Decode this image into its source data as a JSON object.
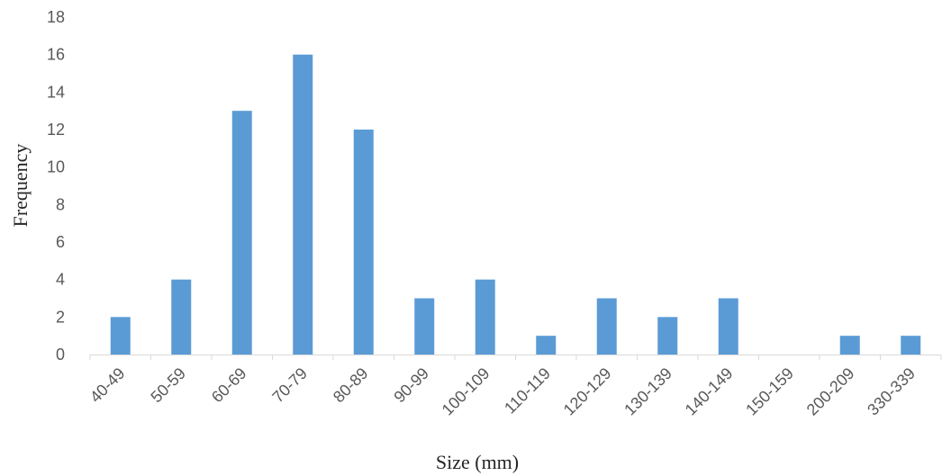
{
  "chart_data": {
    "type": "bar",
    "title": "",
    "xlabel": "Size (mm)",
    "ylabel": "Frequency",
    "categories": [
      "40-49",
      "50-59",
      "60-69",
      "70-79",
      "80-89",
      "90-99",
      "100-109",
      "110-119",
      "120-129",
      "130-139",
      "140-149",
      "150-159",
      "200-209",
      "330-339"
    ],
    "values": [
      2,
      4,
      13,
      16,
      12,
      3,
      4,
      1,
      3,
      2,
      3,
      0,
      1,
      1
    ],
    "ylim": [
      0,
      18
    ],
    "yticks": [
      "0",
      "2",
      "4",
      "6",
      "8",
      "10",
      "12",
      "14",
      "16",
      "18"
    ],
    "grid": false,
    "legend": "none",
    "bar_color": "#5b9bd5"
  }
}
